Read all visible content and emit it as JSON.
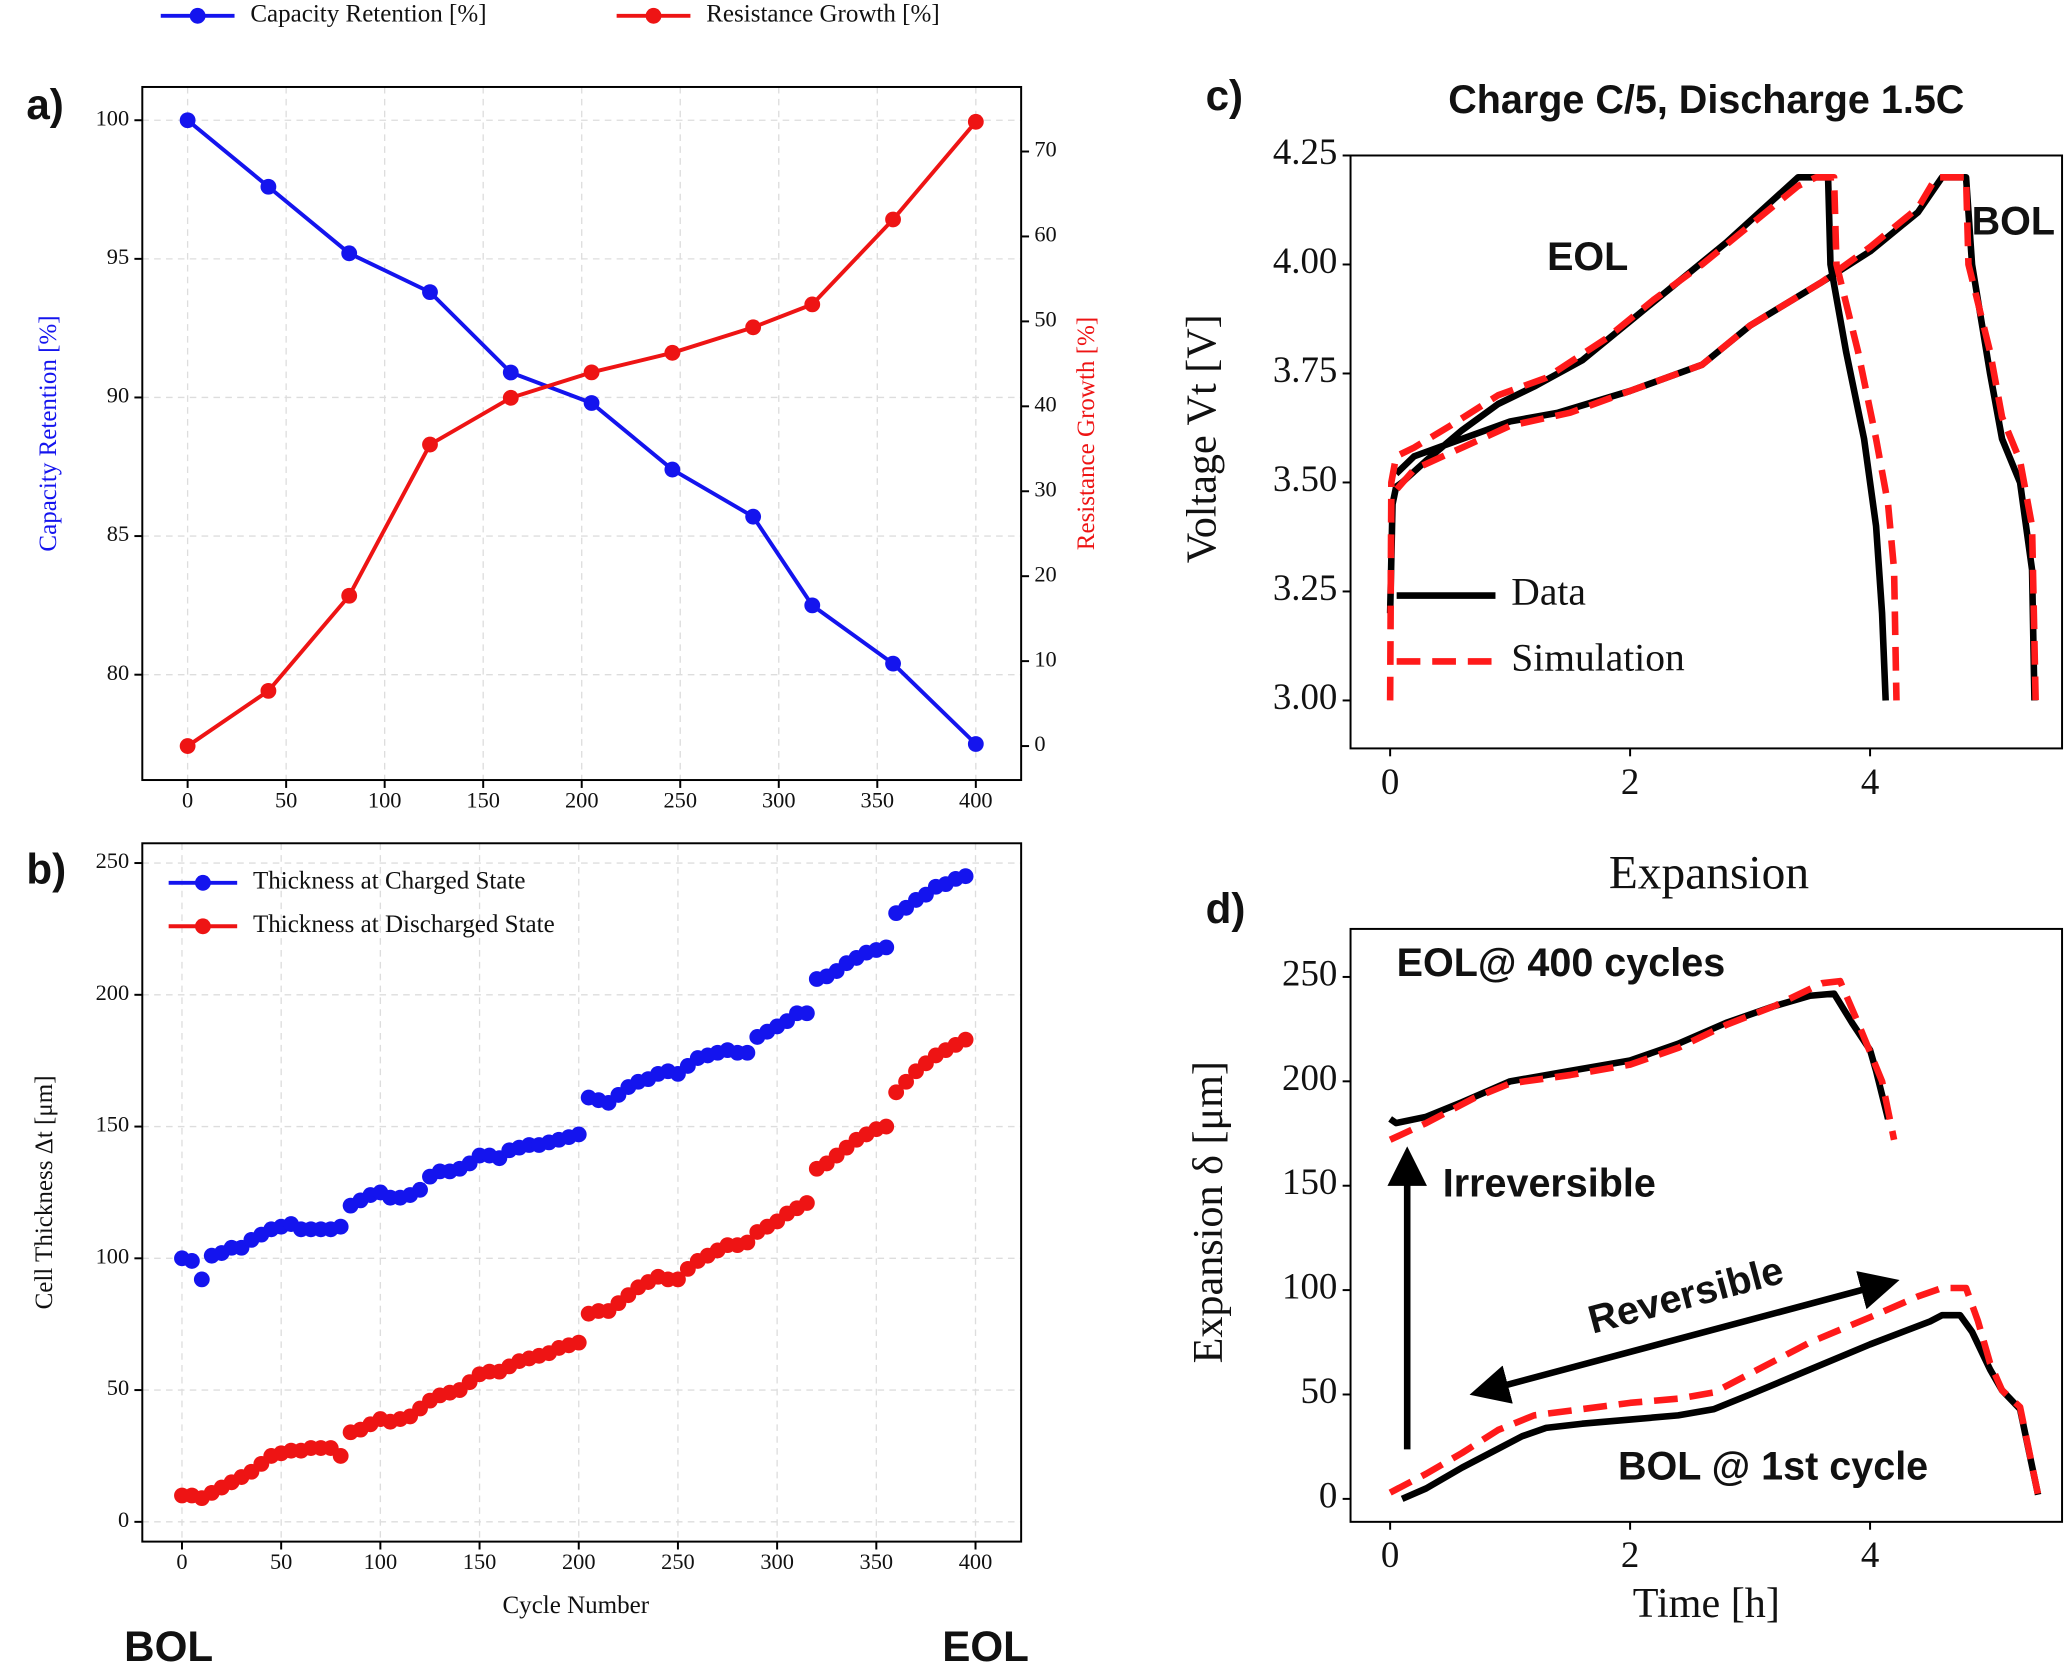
{
  "chart_data": [
    {
      "type": "line",
      "label": "a)",
      "marker": true,
      "grid": true,
      "legend": "top",
      "y_label": "Capacity Retention [%]",
      "y2_label": "Resistance Growth [%]",
      "x": [
        0,
        41,
        82,
        123,
        164,
        205,
        246,
        287,
        317,
        358,
        400
      ],
      "series": [
        {
          "name": "Capacity Retention [%]",
          "color": "#1414ee",
          "values": [
            100,
            97.6,
            95.2,
            93.8,
            90.9,
            89.8,
            87.4,
            85.7,
            82.5,
            80.4,
            77.5
          ]
        },
        {
          "name": "Resistance Growth [%]",
          "color": "#ee1414",
          "axis": "y2",
          "values": [
            0,
            6.5,
            17.7,
            35.5,
            41,
            44,
            46.3,
            49.3,
            52,
            62,
            73.5
          ]
        }
      ],
      "xlim": [
        -23,
        423
      ],
      "xticks": [
        0,
        50,
        100,
        150,
        200,
        250,
        300,
        350,
        400
      ],
      "ylim": [
        76.2,
        101.2
      ],
      "yticks": [
        80,
        85,
        90,
        95,
        100
      ],
      "y2lim": [
        -4,
        77.6
      ],
      "y2ticks": [
        0,
        10,
        20,
        30,
        40,
        50,
        60,
        70
      ]
    },
    {
      "type": "scatter",
      "label": "b)",
      "grid": true,
      "legend": "upper left",
      "x_label": "Cycle Number",
      "y_label": "Cell Thickness Δt [μm]",
      "annotations": [
        "BOL",
        "EOL"
      ],
      "x": [
        0,
        5,
        10,
        15,
        20,
        25,
        30,
        35,
        40,
        45,
        50,
        55,
        60,
        65,
        70,
        75,
        80,
        85,
        90,
        95,
        100,
        105,
        110,
        115,
        120,
        125,
        130,
        135,
        140,
        145,
        150,
        155,
        160,
        165,
        170,
        175,
        180,
        185,
        190,
        195,
        200,
        205,
        210,
        215,
        220,
        225,
        230,
        235,
        240,
        245,
        250,
        255,
        260,
        265,
        270,
        275,
        280,
        285,
        290,
        295,
        300,
        305,
        310,
        315,
        320,
        325,
        330,
        335,
        340,
        345,
        350,
        355,
        360,
        365,
        370,
        375,
        380,
        385,
        390,
        395
      ],
      "series": [
        {
          "name": "Thickness at Charged State",
          "color": "#1414ee",
          "values": [
            100,
            99,
            92,
            101,
            102,
            104,
            104,
            107,
            109,
            111,
            112,
            113,
            111,
            111,
            111,
            111,
            112,
            120,
            122,
            124,
            125,
            123,
            123,
            124,
            126,
            131,
            133,
            133,
            134,
            136,
            139,
            139,
            138,
            141,
            142,
            143,
            143,
            144,
            145,
            146,
            147,
            161,
            160,
            159,
            162,
            165,
            167,
            168,
            170,
            171,
            170,
            173,
            176,
            177,
            178,
            179,
            178,
            178,
            184,
            186,
            188,
            190,
            193,
            193,
            206,
            207,
            209,
            212,
            214,
            216,
            217,
            218,
            231,
            233,
            236,
            238,
            241,
            242,
            244,
            245
          ]
        },
        {
          "name": "Thickness at Discharged State",
          "color": "#ee1414",
          "values": [
            10,
            10,
            9,
            11,
            13,
            15,
            17,
            19,
            22,
            25,
            26,
            27,
            27,
            28,
            28,
            28,
            25,
            34,
            35,
            37,
            39,
            38,
            39,
            40,
            43,
            46,
            48,
            49,
            50,
            53,
            56,
            57,
            57,
            59,
            61,
            62,
            63,
            64,
            66,
            67,
            68,
            79,
            80,
            80,
            83,
            86,
            89,
            91,
            93,
            92,
            92,
            96,
            99,
            101,
            103,
            105,
            105,
            106,
            110,
            112,
            114,
            117,
            119,
            121,
            134,
            136,
            139,
            142,
            145,
            147,
            149,
            150,
            163,
            167,
            171,
            174,
            177,
            179,
            181,
            183
          ]
        }
      ],
      "xlim": [
        -20,
        423
      ],
      "xticks": [
        0,
        50,
        100,
        150,
        200,
        250,
        300,
        350,
        400
      ],
      "ylim": [
        -7.5,
        257.5
      ],
      "yticks": [
        0,
        50,
        100,
        150,
        200,
        250
      ]
    },
    {
      "type": "line",
      "label": "c)",
      "title": "Charge C/5, Discharge 1.5C",
      "grid": false,
      "legend": "lower left",
      "y_label": "Voltage Vt [V]",
      "annotations": [
        "EOL",
        "BOL"
      ],
      "series": [
        {
          "name": "Data",
          "color": "#000000",
          "linestyle": "solid",
          "x": [
            0,
            0.02,
            0.05,
            0.1,
            0.3,
            0.6,
            0.9,
            1.2,
            1.6,
            2.0,
            2.4,
            2.8,
            3.2,
            3.4,
            3.65,
            3.67,
            3.8,
            3.95,
            4.05,
            4.1,
            4.13,
            null,
            0.05,
            0.2,
            0.6,
            1.0,
            1.4,
            2.0,
            2.6,
            3.0,
            3.6,
            4.0,
            4.4,
            4.6,
            4.8,
            4.85,
            5.0,
            5.1,
            5.25,
            5.35,
            5.37
          ],
          "values": [
            3.2,
            3.45,
            3.49,
            3.5,
            3.55,
            3.62,
            3.68,
            3.72,
            3.78,
            3.87,
            3.96,
            4.05,
            4.15,
            4.2,
            4.2,
            4.0,
            3.8,
            3.6,
            3.4,
            3.2,
            3.0,
            null,
            3.52,
            3.56,
            3.6,
            3.64,
            3.66,
            3.71,
            3.77,
            3.86,
            3.96,
            4.03,
            4.12,
            4.2,
            4.2,
            4.0,
            3.75,
            3.6,
            3.5,
            3.3,
            3.0
          ]
        },
        {
          "name": "Simulation",
          "color": "#ff1a1a",
          "linestyle": "dashed",
          "x": [
            0,
            0.01,
            0.05,
            0.2,
            0.5,
            0.9,
            1.3,
            1.8,
            2.2,
            2.6,
            3.0,
            3.4,
            3.55,
            3.7,
            3.72,
            3.9,
            4.05,
            4.15,
            4.2,
            4.22,
            null,
            0,
            0.01,
            0.2,
            0.6,
            1.0,
            1.5,
            2.0,
            2.6,
            3.0,
            3.6,
            4.0,
            4.4,
            4.55,
            4.8,
            4.82,
            5.0,
            5.1,
            5.25,
            5.35,
            5.38
          ],
          "values": [
            3.0,
            3.5,
            3.56,
            3.58,
            3.63,
            3.7,
            3.74,
            3.83,
            3.92,
            4.0,
            4.09,
            4.18,
            4.2,
            4.2,
            4.0,
            3.8,
            3.6,
            3.45,
            3.3,
            3.0,
            null,
            3.0,
            3.47,
            3.53,
            3.58,
            3.63,
            3.66,
            3.71,
            3.77,
            3.86,
            3.96,
            4.04,
            4.13,
            4.2,
            4.2,
            4.0,
            3.8,
            3.65,
            3.55,
            3.4,
            3.0
          ]
        }
      ],
      "xlim": [
        -0.33,
        5.6
      ],
      "xticks": [
        0,
        2,
        4
      ],
      "ylim": [
        2.89,
        4.25
      ],
      "yticks": [
        {
          "value": 3,
          "label": "3.00"
        },
        {
          "value": 3.25,
          "label": "3.25"
        },
        {
          "value": 3.5,
          "label": "3.50"
        },
        {
          "value": 3.75,
          "label": "3.75"
        },
        {
          "value": 4,
          "label": "4.00"
        },
        {
          "value": 4.25,
          "label": "4.25"
        }
      ]
    },
    {
      "type": "line",
      "label": "d)",
      "title": "Expansion",
      "grid": false,
      "x_label": "Time [h]",
      "y_label": "Expansion δ [μm]",
      "annotations": [
        "EOL@ 400 cycles",
        "Irreversible",
        "Reversible",
        "BOL @ 1st cycle"
      ],
      "series": [
        {
          "name": "Data",
          "color": "#000000",
          "linestyle": "solid",
          "x": [
            0,
            0.05,
            0.3,
            0.6,
            1.0,
            1.5,
            2.0,
            2.4,
            2.8,
            3.2,
            3.5,
            3.7,
            3.85,
            4.0,
            4.05,
            4.15,
            null,
            0.1,
            0.3,
            0.6,
            0.9,
            1.1,
            1.3,
            1.6,
            2.0,
            2.4,
            2.7,
            3.0,
            3.5,
            4.0,
            4.5,
            4.6,
            4.75,
            4.85,
            5.0,
            5.1,
            5.25,
            5.4
          ],
          "values": [
            182,
            180,
            183,
            190,
            200,
            205,
            210,
            218,
            228,
            236,
            241,
            242,
            228,
            215,
            205,
            182,
            null,
            0,
            5,
            15,
            24,
            30,
            34,
            36,
            38,
            40,
            43,
            50,
            62,
            74,
            85,
            88,
            88,
            80,
            62,
            52,
            43,
            2
          ]
        },
        {
          "name": "Simulation",
          "color": "#ff1a1a",
          "linestyle": "dashed",
          "x": [
            0,
            0.3,
            0.7,
            1.0,
            1.5,
            2.0,
            2.4,
            2.8,
            3.2,
            3.6,
            3.75,
            3.9,
            4.1,
            4.2,
            null,
            0,
            0.3,
            0.6,
            0.9,
            1.2,
            1.6,
            2.0,
            2.4,
            2.7,
            3.0,
            3.5,
            4.0,
            4.4,
            4.6,
            4.8,
            4.9,
            5.0,
            5.1,
            5.25,
            5.4
          ],
          "values": [
            172,
            180,
            192,
            199,
            203,
            208,
            216,
            227,
            236,
            247,
            248,
            228,
            200,
            172,
            null,
            3,
            12,
            22,
            33,
            40,
            43,
            46,
            48,
            51,
            60,
            75,
            87,
            97,
            101,
            101,
            85,
            65,
            52,
            44,
            2
          ]
        }
      ],
      "xlim": [
        -0.33,
        5.6
      ],
      "xticks": [
        0,
        2,
        4
      ],
      "ylim": [
        -11,
        273
      ],
      "yticks": [
        0,
        50,
        100,
        150,
        200,
        250
      ]
    }
  ]
}
